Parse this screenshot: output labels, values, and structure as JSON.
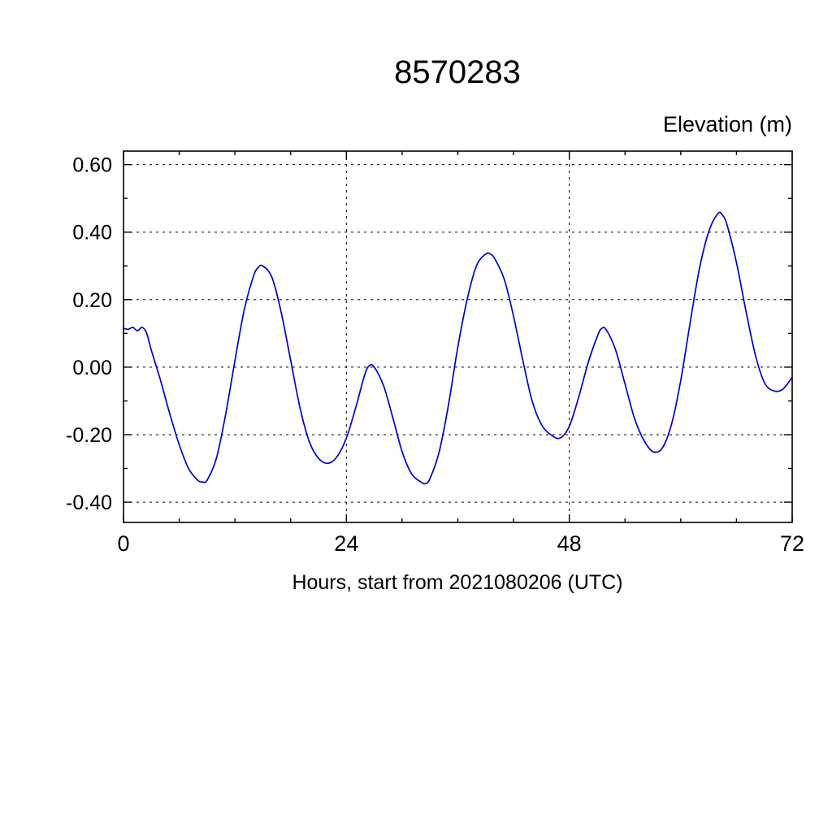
{
  "station_id": "8570283",
  "line_color": "#0000cc",
  "axis_color": "#000000",
  "chart_data": {
    "type": "line",
    "title": "8570283",
    "ylabel": "Elevation (m)",
    "xlabel": "Hours, start from 2021080206 (UTC)",
    "xlim": [
      0,
      72
    ],
    "ylim": [
      -0.46,
      0.64
    ],
    "xticks": [
      0,
      24,
      48,
      72
    ],
    "xtick_labels": [
      "0",
      "24",
      "48",
      "72"
    ],
    "yticks": [
      0.6,
      0.4,
      0.2,
      0.0,
      -0.2,
      -0.4
    ],
    "ytick_labels": [
      "0.60",
      "0.40",
      "0.20",
      "0.00",
      "-0.20",
      "-0.40"
    ],
    "x_minor_step": 6,
    "y_minor_step": 0.1,
    "grid": "dashed",
    "legend": "none",
    "series": [
      {
        "name": "elevation",
        "x": [
          0,
          0.5,
          1,
          1.5,
          2,
          2.5,
          3,
          4,
          5,
          6,
          7,
          8,
          8.5,
          9,
          10,
          11,
          12,
          13,
          14,
          14.5,
          15,
          16,
          17,
          18,
          19,
          20,
          21,
          22,
          23,
          24,
          25,
          26,
          26.5,
          27,
          28,
          29,
          30,
          31,
          32,
          32.5,
          33,
          34,
          35,
          36,
          37,
          38,
          39,
          39.5,
          40,
          41,
          42,
          43,
          44,
          45,
          46,
          47,
          48,
          49,
          50,
          51,
          51.5,
          52,
          53,
          54,
          55,
          56,
          57,
          58,
          59,
          60,
          61,
          62,
          63,
          64,
          64.5,
          65,
          66,
          67,
          68,
          69,
          70,
          71,
          72
        ],
        "y": [
          0.115,
          0.112,
          0.118,
          0.108,
          0.118,
          0.1,
          0.05,
          -0.04,
          -0.14,
          -0.23,
          -0.3,
          -0.335,
          -0.34,
          -0.335,
          -0.27,
          -0.14,
          0.02,
          0.17,
          0.27,
          0.295,
          0.3,
          0.265,
          0.16,
          0.02,
          -0.12,
          -0.22,
          -0.27,
          -0.285,
          -0.265,
          -0.21,
          -0.12,
          -0.02,
          0.005,
          0.0,
          -0.055,
          -0.15,
          -0.25,
          -0.315,
          -0.34,
          -0.345,
          -0.33,
          -0.25,
          -0.11,
          0.06,
          0.2,
          0.3,
          0.335,
          0.335,
          0.32,
          0.26,
          0.15,
          0.02,
          -0.1,
          -0.17,
          -0.2,
          -0.21,
          -0.175,
          -0.09,
          0.01,
          0.09,
          0.115,
          0.11,
          0.05,
          -0.05,
          -0.15,
          -0.215,
          -0.25,
          -0.24,
          -0.17,
          -0.04,
          0.13,
          0.29,
          0.4,
          0.455,
          0.45,
          0.42,
          0.31,
          0.17,
          0.04,
          -0.045,
          -0.07,
          -0.065,
          -0.03
        ]
      }
    ]
  }
}
